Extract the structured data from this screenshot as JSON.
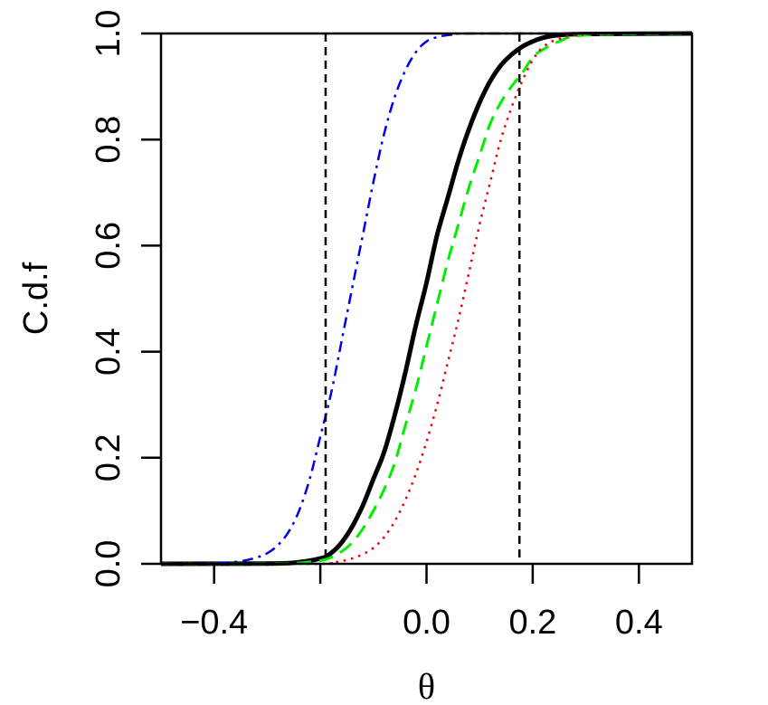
{
  "chart_data": {
    "type": "line",
    "xlabel": "θ",
    "ylabel": "C.d.f",
    "xlim": [
      -0.5,
      0.5
    ],
    "ylim": [
      0,
      1
    ],
    "xticks": [
      -0.4,
      -0.2,
      0.0,
      0.2,
      0.4
    ],
    "xtick_labels": [
      "−0.4",
      "",
      "0.0",
      "0.2",
      "0.4"
    ],
    "yticks": [
      0.0,
      0.2,
      0.4,
      0.6,
      0.8,
      1.0
    ],
    "ytick_labels": [
      "0.0",
      "0.2",
      "0.4",
      "0.6",
      "0.8",
      "1.0"
    ],
    "grid": false,
    "series": [
      {
        "style": "solid",
        "color": "#000000",
        "x": [
          -0.5,
          -0.3,
          -0.25,
          -0.2,
          -0.18,
          -0.16,
          -0.14,
          -0.12,
          -0.1,
          -0.08,
          -0.06,
          -0.04,
          -0.02,
          0.0,
          0.02,
          0.04,
          0.06,
          0.08,
          0.1,
          0.12,
          0.14,
          0.16,
          0.18,
          0.2,
          0.22,
          0.25,
          0.3,
          0.5
        ],
        "values": [
          0.0,
          0.0005,
          0.002,
          0.01,
          0.02,
          0.04,
          0.07,
          0.11,
          0.16,
          0.21,
          0.28,
          0.36,
          0.45,
          0.53,
          0.62,
          0.69,
          0.76,
          0.82,
          0.87,
          0.91,
          0.94,
          0.96,
          0.975,
          0.985,
          0.992,
          0.997,
          0.999,
          1.0
        ]
      },
      {
        "style": "dashed",
        "color": "#00ee00",
        "x": [
          -0.5,
          -0.3,
          -0.25,
          -0.2,
          -0.18,
          -0.16,
          -0.14,
          -0.12,
          -0.1,
          -0.08,
          -0.06,
          -0.04,
          -0.02,
          0.0,
          0.02,
          0.04,
          0.06,
          0.08,
          0.1,
          0.12,
          0.14,
          0.16,
          0.18,
          0.2,
          0.22,
          0.25,
          0.3,
          0.5
        ],
        "values": [
          0.0,
          0.0002,
          0.001,
          0.006,
          0.012,
          0.023,
          0.04,
          0.066,
          0.1,
          0.14,
          0.19,
          0.26,
          0.33,
          0.41,
          0.49,
          0.57,
          0.64,
          0.71,
          0.77,
          0.83,
          0.87,
          0.9,
          0.925,
          0.955,
          0.97,
          0.985,
          0.997,
          1.0
        ]
      },
      {
        "style": "dotted",
        "color": "#ee0000",
        "x": [
          -0.5,
          -0.2,
          -0.18,
          -0.16,
          -0.14,
          -0.12,
          -0.1,
          -0.08,
          -0.06,
          -0.04,
          -0.02,
          0.0,
          0.02,
          0.04,
          0.06,
          0.08,
          0.1,
          0.12,
          0.14,
          0.16,
          0.18,
          0.2,
          0.22,
          0.25,
          0.3,
          0.5
        ],
        "values": [
          0.0,
          0.0,
          0.002,
          0.005,
          0.01,
          0.018,
          0.03,
          0.05,
          0.08,
          0.12,
          0.17,
          0.23,
          0.3,
          0.38,
          0.46,
          0.55,
          0.64,
          0.72,
          0.8,
          0.86,
          0.91,
          0.95,
          0.975,
          0.99,
          0.998,
          1.0
        ]
      },
      {
        "style": "dotdash",
        "color": "#0000ee",
        "x": [
          -0.5,
          -0.4,
          -0.35,
          -0.32,
          -0.3,
          -0.28,
          -0.26,
          -0.24,
          -0.22,
          -0.2,
          -0.18,
          -0.16,
          -0.14,
          -0.12,
          -0.1,
          -0.08,
          -0.06,
          -0.04,
          -0.02,
          0.0,
          0.02,
          0.05,
          0.1,
          0.5
        ],
        "values": [
          0.0,
          0.001,
          0.005,
          0.012,
          0.02,
          0.035,
          0.06,
          0.1,
          0.16,
          0.24,
          0.32,
          0.42,
          0.52,
          0.62,
          0.72,
          0.81,
          0.88,
          0.93,
          0.965,
          0.985,
          0.993,
          0.998,
          1.0,
          1.0
        ]
      }
    ],
    "vlines": [
      {
        "x": -0.19,
        "style": "dashed",
        "color": "#000000"
      },
      {
        "x": 0.175,
        "style": "dashed",
        "color": "#000000"
      }
    ]
  }
}
